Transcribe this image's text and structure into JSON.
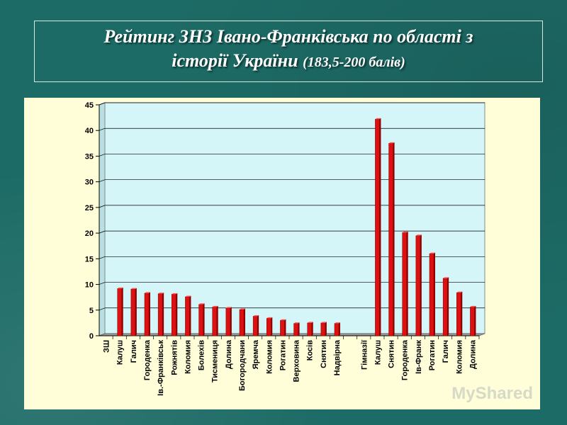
{
  "title": {
    "line1": "Рейтинг  ЗНЗ Івано-Франківська по області   з",
    "line2_main": "історії України ",
    "line2_small": "(183,5-200 балів)"
  },
  "chart_data": {
    "type": "bar",
    "title": "Рейтинг  ЗНЗ Івано-Франківська по області   з історії України (183,5-200 балів)",
    "xlabel": "",
    "ylabel": "",
    "ylim": [
      0,
      45
    ],
    "yticks": [
      0,
      5,
      10,
      15,
      20,
      25,
      30,
      35,
      40,
      45
    ],
    "grid": true,
    "colors": {
      "bar": "#dd1111",
      "bar_dark": "#8c0000",
      "plot_bg": "#d4f6f8",
      "floor": "#9c9c9c"
    },
    "categories": [
      "ЗШ",
      "Калуш",
      "Галич",
      "Городенка",
      "Ів.-Франківськ",
      "Рожнятів",
      "Коломия",
      "Болехів",
      "Тисмениця",
      "Долина",
      "Богородчани",
      "Яремча",
      "Коломия",
      "Рогатин",
      "Верховина",
      "Косів",
      "Снятин",
      "Надвірна",
      "",
      "Гімназії",
      "Калуш",
      "Снятин",
      "Городенка",
      "Ів-Франк",
      "Рогатин",
      "Галич",
      "Коломия",
      "Долина"
    ],
    "values": [
      null,
      9.2,
      9.1,
      8.3,
      8.2,
      8.1,
      7.6,
      6.1,
      5.6,
      5.4,
      5.1,
      3.8,
      3.4,
      3.0,
      2.4,
      2.5,
      2.5,
      2.4,
      null,
      null,
      42.2,
      37.5,
      20.1,
      19.5,
      16.0,
      11.2,
      8.4,
      5.6
    ]
  },
  "watermark": "MyShared"
}
